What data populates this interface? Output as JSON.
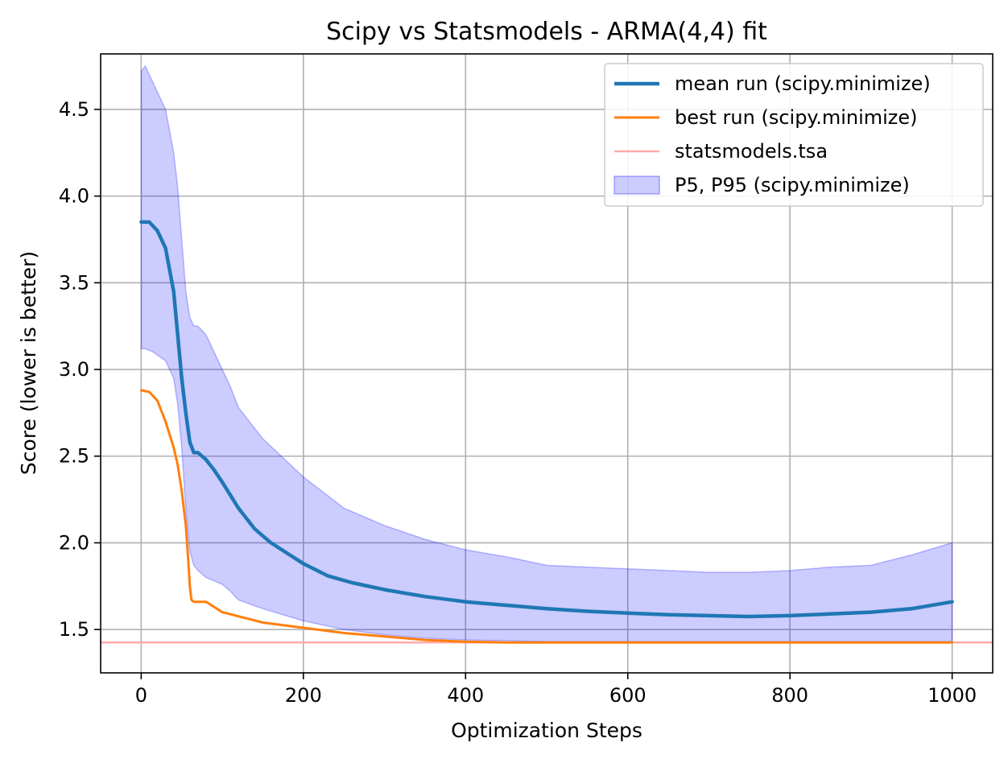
{
  "chart_data": {
    "type": "line",
    "title": "Scipy vs Statsmodels - ARMA(4,4) fit",
    "xlabel": "Optimization Steps",
    "ylabel": "Score (lower is better)",
    "xlim": [
      -50,
      1050
    ],
    "ylim": [
      1.25,
      4.82
    ],
    "xticks": [
      0,
      200,
      400,
      600,
      800,
      1000
    ],
    "yticks": [
      1.5,
      2.0,
      2.5,
      3.0,
      3.5,
      4.0,
      4.5
    ],
    "xtick_labels": [
      "0",
      "200",
      "400",
      "600",
      "800",
      "1000"
    ],
    "ytick_labels": [
      "1.5",
      "2.0",
      "2.5",
      "3.0",
      "3.5",
      "4.0",
      "4.5"
    ],
    "grid": true,
    "legend_position": "top-right",
    "colors": {
      "mean": "#1f77b4",
      "best": "#ff7f0e",
      "statsmodels": "#ffaaaa",
      "band": "#0000ff"
    },
    "series": [
      {
        "name": "mean run (scipy.minimize)",
        "x": [
          0,
          10,
          20,
          30,
          40,
          45,
          50,
          55,
          60,
          65,
          70,
          80,
          90,
          100,
          120,
          140,
          160,
          180,
          200,
          230,
          260,
          300,
          350,
          400,
          450,
          500,
          550,
          600,
          650,
          700,
          750,
          800,
          850,
          900,
          950,
          1000
        ],
        "y": [
          3.85,
          3.85,
          3.8,
          3.7,
          3.45,
          3.2,
          2.95,
          2.75,
          2.58,
          2.52,
          2.52,
          2.48,
          2.42,
          2.35,
          2.2,
          2.08,
          2.0,
          1.94,
          1.88,
          1.81,
          1.77,
          1.73,
          1.69,
          1.66,
          1.64,
          1.62,
          1.605,
          1.595,
          1.585,
          1.58,
          1.575,
          1.58,
          1.59,
          1.6,
          1.62,
          1.66
        ]
      },
      {
        "name": "best run (scipy.minimize)",
        "x": [
          0,
          10,
          20,
          30,
          40,
          45,
          50,
          55,
          58,
          60,
          62,
          65,
          70,
          80,
          100,
          150,
          200,
          250,
          300,
          350,
          400,
          450,
          500,
          600,
          700,
          800,
          900,
          1000
        ],
        "y": [
          2.88,
          2.87,
          2.82,
          2.7,
          2.55,
          2.45,
          2.3,
          2.1,
          1.9,
          1.75,
          1.67,
          1.66,
          1.66,
          1.66,
          1.6,
          1.54,
          1.51,
          1.48,
          1.46,
          1.44,
          1.43,
          1.425,
          1.425,
          1.425,
          1.425,
          1.425,
          1.425,
          1.425
        ]
      },
      {
        "name": "statsmodels.tsa",
        "y_constant": 1.425
      }
    ],
    "band": {
      "name": "P5, P95 (scipy.minimize)",
      "x": [
        0,
        5,
        15,
        30,
        40,
        45,
        50,
        55,
        60,
        65,
        70,
        80,
        90,
        100,
        110,
        120,
        150,
        200,
        250,
        300,
        350,
        400,
        450,
        500,
        550,
        600,
        650,
        700,
        750,
        800,
        850,
        900,
        950,
        1000
      ],
      "lower": [
        3.12,
        3.12,
        3.1,
        3.05,
        2.95,
        2.8,
        2.55,
        2.2,
        1.95,
        1.87,
        1.84,
        1.8,
        1.78,
        1.76,
        1.72,
        1.67,
        1.62,
        1.55,
        1.5,
        1.47,
        1.45,
        1.44,
        1.435,
        1.43,
        1.43,
        1.43,
        1.43,
        1.43,
        1.43,
        1.43,
        1.43,
        1.43,
        1.43,
        1.43
      ],
      "upper": [
        4.72,
        4.75,
        4.65,
        4.5,
        4.25,
        4.05,
        3.75,
        3.45,
        3.3,
        3.25,
        3.25,
        3.2,
        3.1,
        3.0,
        2.9,
        2.78,
        2.6,
        2.38,
        2.2,
        2.1,
        2.02,
        1.96,
        1.92,
        1.87,
        1.86,
        1.85,
        1.84,
        1.83,
        1.83,
        1.84,
        1.86,
        1.87,
        1.93,
        2.0
      ]
    }
  }
}
